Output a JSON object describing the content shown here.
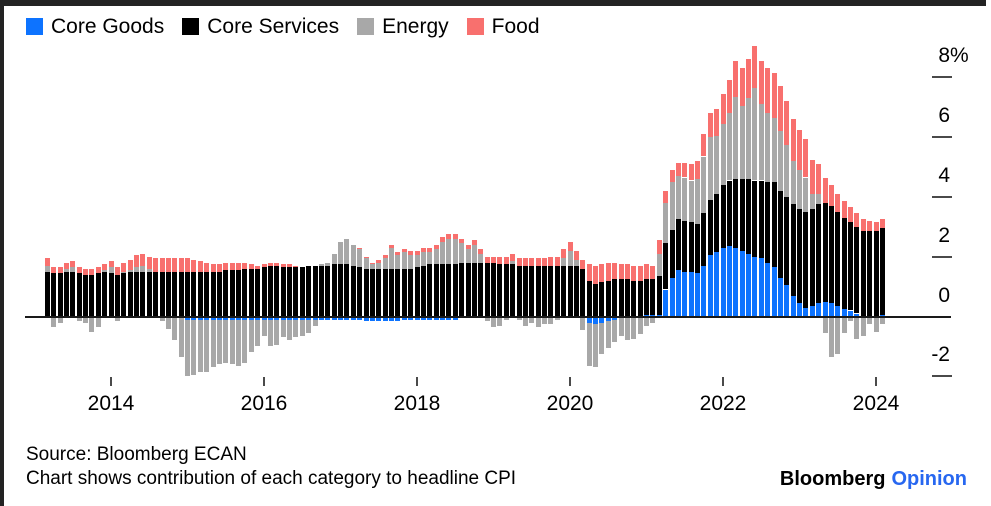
{
  "chart_data": {
    "type": "bar",
    "stacked": true,
    "title": "",
    "start_month": "2013-03",
    "frequency": "monthly",
    "unit": "percentage-point contribution to headline CPI, %",
    "ylim": [
      -2.7,
      9.3
    ],
    "grid": false,
    "legend_position": "top-left",
    "y_axis_ticks": [
      {
        "value": 8,
        "label": "8%"
      },
      {
        "value": 6,
        "label": "6"
      },
      {
        "value": 4,
        "label": "4"
      },
      {
        "value": 2,
        "label": "2"
      },
      {
        "value": 0,
        "label": "0"
      },
      {
        "value": -2,
        "label": "-2"
      }
    ],
    "x_axis_year_labels": [
      "2014",
      "2016",
      "2018",
      "2020",
      "2022",
      "2024"
    ],
    "series": [
      {
        "name": "Core Goods",
        "color": "#0d73ff",
        "values": [
          -0.05,
          -0.05,
          -0.05,
          0,
          -0.05,
          -0.05,
          -0.05,
          -0.05,
          -0.05,
          -0.05,
          -0.05,
          -0.05,
          -0.05,
          -0.05,
          0,
          0,
          0,
          0,
          -0.05,
          -0.05,
          -0.05,
          -0.05,
          -0.1,
          -0.1,
          -0.1,
          -0.1,
          -0.1,
          -0.1,
          -0.1,
          -0.1,
          -0.1,
          -0.1,
          -0.1,
          -0.1,
          -0.1,
          -0.1,
          -0.1,
          -0.1,
          -0.1,
          -0.1,
          -0.1,
          -0.1,
          -0.1,
          -0.1,
          -0.1,
          -0.1,
          -0.1,
          -0.1,
          -0.1,
          -0.1,
          -0.15,
          -0.15,
          -0.15,
          -0.15,
          -0.15,
          -0.15,
          -0.1,
          -0.1,
          -0.1,
          -0.1,
          -0.1,
          -0.1,
          -0.1,
          -0.1,
          -0.1,
          -0.05,
          -0.05,
          -0.05,
          -0.05,
          -0.05,
          -0.05,
          -0.05,
          -0.05,
          -0.05,
          -0.05,
          -0.05,
          -0.05,
          -0.05,
          -0.05,
          -0.05,
          -0.05,
          -0.05,
          -0.05,
          -0.05,
          -0.05,
          -0.2,
          -0.25,
          -0.2,
          -0.15,
          -0.1,
          -0.05,
          -0.05,
          -0.05,
          -0.05,
          0.05,
          0.05,
          0.05,
          0.9,
          1.3,
          1.55,
          1.5,
          1.5,
          1.45,
          1.7,
          2.05,
          2.15,
          2.3,
          2.35,
          2.3,
          2.2,
          2.1,
          2,
          1.95,
          1.8,
          1.65,
          1.3,
          1.05,
          0.7,
          0.45,
          0.3,
          0.35,
          0.45,
          0.5,
          0.45,
          0.35,
          0.25,
          0.2,
          0.1,
          -0.05,
          -0.05,
          -0.05,
          0.05
        ]
      },
      {
        "name": "Core Services",
        "color": "#000000",
        "values": [
          1.5,
          1.45,
          1.45,
          1.5,
          1.5,
          1.45,
          1.4,
          1.4,
          1.45,
          1.5,
          1.45,
          1.4,
          1.45,
          1.5,
          1.5,
          1.5,
          1.5,
          1.5,
          1.5,
          1.5,
          1.5,
          1.5,
          1.5,
          1.5,
          1.5,
          1.5,
          1.5,
          1.5,
          1.55,
          1.55,
          1.55,
          1.6,
          1.6,
          1.6,
          1.65,
          1.7,
          1.7,
          1.65,
          1.65,
          1.65,
          1.65,
          1.7,
          1.7,
          1.7,
          1.7,
          1.75,
          1.75,
          1.75,
          1.7,
          1.65,
          1.6,
          1.6,
          1.6,
          1.6,
          1.6,
          1.6,
          1.6,
          1.6,
          1.65,
          1.7,
          1.75,
          1.75,
          1.75,
          1.75,
          1.75,
          1.8,
          1.8,
          1.8,
          1.8,
          1.8,
          1.8,
          1.75,
          1.75,
          1.75,
          1.7,
          1.7,
          1.7,
          1.7,
          1.7,
          1.7,
          1.7,
          1.7,
          1.7,
          1.7,
          1.6,
          1.2,
          1.1,
          1.15,
          1.2,
          1.25,
          1.25,
          1.25,
          1.2,
          1.2,
          1.2,
          1.2,
          1.3,
          1.55,
          1.6,
          1.7,
          1.7,
          1.65,
          1.65,
          1.75,
          1.85,
          1.95,
          2.1,
          2.2,
          2.3,
          2.4,
          2.5,
          2.55,
          2.6,
          2.7,
          2.85,
          2.9,
          2.95,
          3.05,
          3.15,
          3.2,
          3.25,
          3.3,
          3.3,
          3.25,
          3.15,
          3.05,
          2.95,
          2.9,
          2.85,
          2.85,
          2.85,
          2.9
        ]
      },
      {
        "name": "Energy",
        "color": "#a8a8a8",
        "values": [
          0.2,
          -0.3,
          -0.15,
          0.1,
          0.15,
          -0.1,
          -0.15,
          -0.45,
          -0.3,
          0.05,
          0.2,
          -0.1,
          0.05,
          0.05,
          0.15,
          0.2,
          0.1,
          -0.05,
          -0.1,
          -0.35,
          -0.75,
          -1.3,
          -1.9,
          -1.85,
          -1.75,
          -1.75,
          -1.6,
          -1.5,
          -1.45,
          -1.5,
          -1.55,
          -1.45,
          -1.1,
          -0.9,
          -0.55,
          -0.9,
          -0.85,
          -0.6,
          -0.7,
          -0.6,
          -0.55,
          -0.45,
          -0.2,
          0.05,
          0.1,
          0.35,
          0.75,
          0.85,
          0.7,
          0.6,
          0.35,
          0.15,
          0.2,
          0.35,
          0.7,
          0.45,
          0.55,
          0.45,
          0.4,
          0.45,
          0.4,
          0.5,
          0.75,
          0.85,
          0.85,
          0.65,
          0.45,
          0.6,
          0.3,
          -0.1,
          -0.3,
          -0.25,
          -0.05,
          0.1,
          -0.05,
          -0.25,
          -0.15,
          -0.3,
          -0.2,
          -0.2,
          -0.05,
          0.25,
          0.5,
          0.2,
          -0.4,
          -1.45,
          -1.45,
          -1.05,
          -0.9,
          -0.75,
          -0.6,
          -0.75,
          -0.7,
          -0.55,
          -0.3,
          -0.2,
          0.75,
          1.35,
          1.6,
          1.45,
          1.45,
          1.4,
          1.5,
          1.9,
          2.1,
          1.95,
          2.05,
          2.25,
          2.75,
          2.45,
          2.7,
          3.1,
          2.55,
          2.3,
          2.15,
          2,
          1.75,
          1.45,
          1.3,
          1.15,
          0.5,
          0.35,
          -0.55,
          -1.35,
          -1.25,
          -0.55,
          -0.15,
          -0.75,
          -0.6,
          -0.2,
          -0.45,
          -0.25
        ]
      },
      {
        "name": "Food",
        "color": "#f8706e",
        "values": [
          0.25,
          0.2,
          0.2,
          0.2,
          0.2,
          0.2,
          0.2,
          0.2,
          0.2,
          0.2,
          0.2,
          0.25,
          0.3,
          0.35,
          0.4,
          0.4,
          0.4,
          0.45,
          0.45,
          0.45,
          0.45,
          0.45,
          0.45,
          0.4,
          0.35,
          0.3,
          0.25,
          0.25,
          0.25,
          0.25,
          0.25,
          0.2,
          0.15,
          0.1,
          0.1,
          0.1,
          0.1,
          0.1,
          0.1,
          0.05,
          0,
          0,
          0,
          0,
          0,
          0,
          0,
          0,
          0,
          0.05,
          0.05,
          0.05,
          0.1,
          0.1,
          0.1,
          0.1,
          0.1,
          0.15,
          0.15,
          0.15,
          0.15,
          0.15,
          0.15,
          0.15,
          0.15,
          0.15,
          0.15,
          0.15,
          0.15,
          0.2,
          0.2,
          0.25,
          0.25,
          0.25,
          0.25,
          0.25,
          0.25,
          0.25,
          0.25,
          0.3,
          0.3,
          0.3,
          0.3,
          0.3,
          0.3,
          0.55,
          0.6,
          0.6,
          0.6,
          0.55,
          0.5,
          0.5,
          0.5,
          0.5,
          0.5,
          0.45,
          0.45,
          0.4,
          0.4,
          0.45,
          0.5,
          0.55,
          0.6,
          0.75,
          0.8,
          0.9,
          1,
          1.1,
          1.2,
          1.25,
          1.3,
          1.4,
          1.45,
          1.5,
          1.5,
          1.5,
          1.45,
          1.4,
          1.35,
          1.3,
          1.15,
          1,
          0.85,
          0.7,
          0.6,
          0.55,
          0.5,
          0.45,
          0.4,
          0.35,
          0.3,
          0.3
        ]
      }
    ]
  },
  "footer": {
    "source_line": "Source: Bloomberg ECAN",
    "note_line": "Chart shows contribution of each category to headline CPI"
  },
  "brand": {
    "black_text": "Bloomberg",
    "accent_text": "Opinion",
    "accent_color": "#2767f0"
  }
}
